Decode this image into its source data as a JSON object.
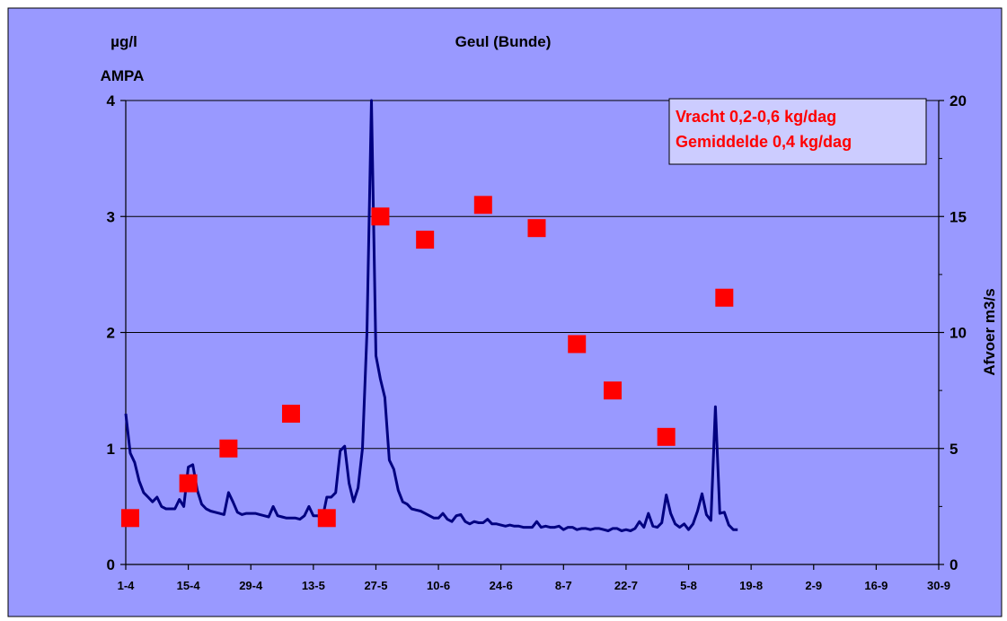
{
  "chart_data": {
    "type": "line",
    "title": "Geul (Bunde)",
    "ylabel_left_unit": "µg/l",
    "ylabel_left": "AMPA",
    "ylabel_right": "Afvoer m3/s",
    "x_tick_labels": [
      "1-4",
      "15-4",
      "29-4",
      "13-5",
      "27-5",
      "10-6",
      "24-6",
      "8-7",
      "22-7",
      "5-8",
      "19-8",
      "2-9",
      "16-9",
      "30-9"
    ],
    "y_left_ticks": [
      "0",
      "1",
      "2",
      "3",
      "4"
    ],
    "y_right_ticks": [
      "0",
      "5",
      "10",
      "15",
      "20"
    ],
    "ylim_left": [
      0,
      4
    ],
    "ylim_right": [
      0,
      20
    ],
    "x_range_days": [
      0,
      182
    ],
    "grid": "horizontal",
    "colors": {
      "background": "#9999ff",
      "line": "#000080",
      "marker": "#ff0000",
      "legend_text": "#ff0000",
      "legend_box": "#ccccff"
    },
    "legend": {
      "placement": "top-right",
      "lines": [
        "Vracht 0,2-0,6 kg/dag",
        "Gemiddelde 0,4 kg/dag"
      ]
    },
    "series": [
      {
        "axis": "right",
        "style": "line",
        "x": [
          0,
          1,
          2,
          3,
          4,
          5,
          6,
          7,
          8,
          9,
          10,
          11,
          12,
          13,
          14,
          15,
          16,
          17,
          18,
          19,
          20,
          21,
          22,
          23,
          24,
          25,
          26,
          27,
          28,
          29,
          30,
          31,
          32,
          33,
          34,
          35,
          36,
          37,
          38,
          39,
          40,
          41,
          42,
          43,
          44,
          45,
          46,
          47,
          48,
          49,
          50,
          51,
          52,
          53,
          54,
          55,
          56,
          57,
          58,
          59,
          60,
          61,
          62,
          63,
          64,
          65,
          66,
          67,
          68,
          69,
          70,
          71,
          72,
          73,
          74,
          75,
          76,
          77,
          78,
          79,
          80,
          81,
          82,
          83,
          84,
          85,
          86,
          87,
          88,
          89,
          90,
          91,
          92,
          93,
          94,
          95,
          96,
          97,
          98,
          99,
          100,
          101,
          102,
          103,
          104,
          105,
          106,
          107,
          108,
          109,
          110,
          111,
          112,
          113,
          114,
          115,
          116,
          117,
          118,
          119,
          120,
          121,
          122,
          123,
          124,
          125,
          126,
          127,
          128,
          129,
          130,
          131,
          132,
          133,
          134,
          135,
          136,
          137
        ],
        "values": [
          6.5,
          4.8,
          4.4,
          3.6,
          3.1,
          2.9,
          2.7,
          2.9,
          2.5,
          2.4,
          2.4,
          2.4,
          2.8,
          2.5,
          4.2,
          4.3,
          3.2,
          2.6,
          2.4,
          2.3,
          2.25,
          2.2,
          2.15,
          3.1,
          2.7,
          2.25,
          2.15,
          2.2,
          2.2,
          2.2,
          2.15,
          2.1,
          2.05,
          2.5,
          2.1,
          2.05,
          2.0,
          2.0,
          2.0,
          1.95,
          2.1,
          2.5,
          2.1,
          2.1,
          1.95,
          2.9,
          2.9,
          3.1,
          4.9,
          5.1,
          3.5,
          2.7,
          3.3,
          5.0,
          10.0,
          20.0,
          9.0,
          8.0,
          7.2,
          4.5,
          4.1,
          3.2,
          2.7,
          2.6,
          2.4,
          2.35,
          2.3,
          2.2,
          2.1,
          2.0,
          2.0,
          2.2,
          1.95,
          1.85,
          2.1,
          2.15,
          1.85,
          1.75,
          1.85,
          1.8,
          1.8,
          1.95,
          1.75,
          1.75,
          1.7,
          1.65,
          1.7,
          1.65,
          1.65,
          1.6,
          1.6,
          1.6,
          1.85,
          1.6,
          1.65,
          1.6,
          1.6,
          1.65,
          1.5,
          1.6,
          1.6,
          1.5,
          1.55,
          1.55,
          1.5,
          1.55,
          1.55,
          1.5,
          1.45,
          1.55,
          1.55,
          1.45,
          1.5,
          1.45,
          1.55,
          1.85,
          1.6,
          2.2,
          1.65,
          1.6,
          1.8,
          3.0,
          2.2,
          1.75,
          1.6,
          1.75,
          1.5,
          1.75,
          2.3,
          3.05,
          2.15,
          1.9,
          6.8,
          2.2,
          2.25,
          1.7,
          1.5,
          1.5
        ]
      },
      {
        "axis": "left",
        "style": "markers",
        "x": [
          1,
          14,
          23,
          37,
          45,
          57,
          67,
          80,
          92,
          101,
          109,
          121,
          134
        ],
        "values": [
          0.4,
          0.7,
          1.0,
          1.3,
          0.4,
          3.0,
          2.8,
          3.1,
          2.9,
          1.9,
          1.5,
          1.1,
          2.3
        ]
      }
    ]
  }
}
